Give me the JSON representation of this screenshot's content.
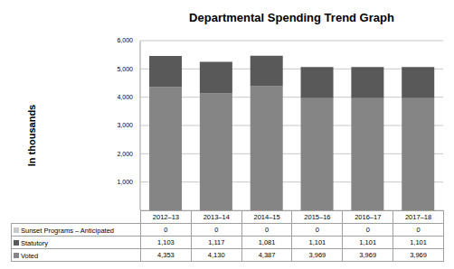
{
  "chart_data": {
    "type": "bar",
    "title": "Departmental Spending Trend Graph",
    "y_label": "In thousands",
    "categories": [
      "2012–13",
      "2013–14",
      "2014–15",
      "2015–16",
      "2016–17",
      "2017–18"
    ],
    "series": [
      {
        "name": "Sunset Programs – Anticipated",
        "color": "#c8c8c8",
        "values": [
          0,
          0,
          0,
          0,
          0,
          0
        ],
        "value_labels": [
          "0",
          "0",
          "0",
          "0",
          "0",
          "0"
        ]
      },
      {
        "name": "Statutory",
        "color": "#595959",
        "values": [
          1103,
          1117,
          1081,
          1101,
          1101,
          1101
        ],
        "value_labels": [
          "1,103",
          "1,117",
          "1,081",
          "1,101",
          "1,101",
          "1,101"
        ]
      },
      {
        "name": "Voted",
        "color": "#858585",
        "values": [
          4353,
          4130,
          4387,
          3969,
          3969,
          3969
        ],
        "value_labels": [
          "4,353",
          "4,130",
          "4,387",
          "3,969",
          "3,969",
          "3,969"
        ]
      }
    ],
    "stacked": true,
    "grid": true,
    "ylim": [
      0,
      6000
    ],
    "yticks": [
      0,
      {
        "value": 1000,
        "label": "1,000"
      },
      {
        "value": 2000,
        "label": "2,000"
      },
      {
        "value": 3000,
        "label": "3,000"
      },
      {
        "value": 4000,
        "label": "4,000"
      },
      {
        "value": 5000,
        "label": "5,000"
      },
      {
        "value": 6000,
        "label": "6,000"
      }
    ]
  }
}
